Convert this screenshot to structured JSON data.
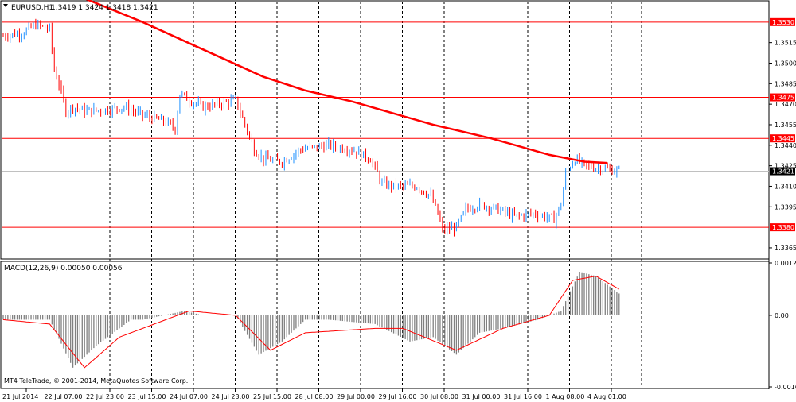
{
  "header": {
    "dropdown_icon": "triangle-down-icon",
    "symbol": "EURUSD,H1",
    "ohlc": "1.3419 1.3424 1.3418 1.3421"
  },
  "macd_label": "MACD(12,26,9) 0.00050 0.00056",
  "footer_credit": "MT4 TeleTrade, © 2001-2014, MetaQuotes Software Corp.",
  "colors": {
    "bull": "#1e90ff",
    "bear": "#ff0000",
    "ma": "#ff0000",
    "level": "#ff0000",
    "macd_hist": "#808080",
    "signal": "#ff0000",
    "grid": "#000000",
    "current_price_line": "#c0c0c0"
  },
  "chart_data": [
    {
      "type": "candlestick",
      "ylim": [
        1.3358,
        1.3545
      ],
      "y_ticks": [
        "1.3515",
        "1.3500",
        "1.3485",
        "1.3470",
        "1.3455",
        "1.3440",
        "1.3425",
        "1.3410",
        "1.3395",
        "1.3365"
      ],
      "x_ticks": [
        "21 Jul 2014",
        "22 Jul 07:00",
        "22 Jul 23:00",
        "23 Jul 15:00",
        "24 Jul 07:00",
        "24 Jul 23:00",
        "25 Jul 15:00",
        "28 Jul 08:00",
        "29 Jul 00:00",
        "29 Jul 16:00",
        "30 Jul 08:00",
        "31 Jul 00:00",
        "31 Jul 16:00",
        "1 Aug 08:00",
        "4 Aug 01:00"
      ],
      "levels": [
        "1.3530",
        "1.3475",
        "1.3445",
        "1.3380"
      ],
      "current_price": "1.3421",
      "ma_series": [
        [
          0,
          1.356
        ],
        [
          34,
          1.3548
        ],
        [
          60,
          1.353
        ],
        [
          86,
          1.351
        ],
        [
          112,
          1.349
        ],
        [
          130,
          1.348
        ],
        [
          150,
          1.3472
        ],
        [
          185,
          1.3455
        ],
        [
          210,
          1.3445
        ],
        [
          235,
          1.3433
        ],
        [
          250,
          1.3428
        ],
        [
          260,
          1.3427
        ]
      ],
      "path_points": [
        [
          0,
          1.352
        ],
        [
          8,
          1.3522
        ],
        [
          14,
          1.3528
        ],
        [
          20,
          1.3525
        ],
        [
          22,
          1.3495
        ],
        [
          24,
          1.3485
        ],
        [
          27,
          1.3465
        ],
        [
          30,
          1.3468
        ],
        [
          35,
          1.3465
        ],
        [
          45,
          1.3466
        ],
        [
          52,
          1.3468
        ],
        [
          60,
          1.3462
        ],
        [
          70,
          1.3457
        ],
        [
          74,
          1.3452
        ],
        [
          76,
          1.3478
        ],
        [
          80,
          1.3473
        ],
        [
          86,
          1.3468
        ],
        [
          92,
          1.347
        ],
        [
          100,
          1.3473
        ],
        [
          104,
          1.3455
        ],
        [
          108,
          1.3437
        ],
        [
          112,
          1.343
        ],
        [
          120,
          1.3428
        ],
        [
          128,
          1.3437
        ],
        [
          140,
          1.344
        ],
        [
          150,
          1.3437
        ],
        [
          158,
          1.343
        ],
        [
          163,
          1.3412
        ],
        [
          168,
          1.341
        ],
        [
          178,
          1.341
        ],
        [
          184,
          1.3403
        ],
        [
          187,
          1.339
        ],
        [
          189,
          1.3378
        ],
        [
          195,
          1.338
        ],
        [
          199,
          1.3393
        ],
        [
          205,
          1.3397
        ],
        [
          213,
          1.3393
        ],
        [
          220,
          1.3388
        ],
        [
          229,
          1.339
        ],
        [
          237,
          1.3386
        ],
        [
          240,
          1.3397
        ],
        [
          242,
          1.342
        ],
        [
          246,
          1.343
        ],
        [
          250,
          1.3425
        ],
        [
          258,
          1.3423
        ],
        [
          265,
          1.3421
        ]
      ]
    },
    {
      "type": "bar",
      "ylim": [
        -0.00164,
        0.0012
      ],
      "y_ticks": [
        "0.0012",
        "0.00",
        "-0.00164"
      ],
      "hist_points": [
        [
          0,
          -0.0001
        ],
        [
          20,
          -0.0001
        ],
        [
          30,
          -0.0012
        ],
        [
          40,
          -0.0007
        ],
        [
          55,
          -0.0001
        ],
        [
          60,
          -0.0001
        ],
        [
          78,
          0.0001
        ],
        [
          86,
          0.0
        ],
        [
          100,
          0.0
        ],
        [
          110,
          -0.0009
        ],
        [
          120,
          -0.0006
        ],
        [
          130,
          -0.0001
        ],
        [
          140,
          -0.0001
        ],
        [
          160,
          -0.0002
        ],
        [
          175,
          -0.0006
        ],
        [
          185,
          -0.0005
        ],
        [
          195,
          -0.0009
        ],
        [
          205,
          -0.0004
        ],
        [
          215,
          -0.0003
        ],
        [
          230,
          -0.0001
        ],
        [
          240,
          0.0001
        ],
        [
          248,
          0.001
        ],
        [
          255,
          0.0009
        ],
        [
          265,
          0.0005
        ]
      ],
      "signal_points": [
        [
          0,
          -0.0001
        ],
        [
          20,
          -0.0002
        ],
        [
          35,
          -0.0012
        ],
        [
          50,
          -0.0005
        ],
        [
          70,
          -0.0001
        ],
        [
          80,
          0.0001
        ],
        [
          100,
          0.0
        ],
        [
          115,
          -0.0008
        ],
        [
          130,
          -0.0004
        ],
        [
          160,
          -0.0003
        ],
        [
          172,
          -0.0003
        ],
        [
          195,
          -0.0008
        ],
        [
          215,
          -0.0003
        ],
        [
          235,
          0.0
        ],
        [
          245,
          0.0008
        ],
        [
          255,
          0.0009
        ],
        [
          265,
          0.0006
        ]
      ]
    }
  ]
}
